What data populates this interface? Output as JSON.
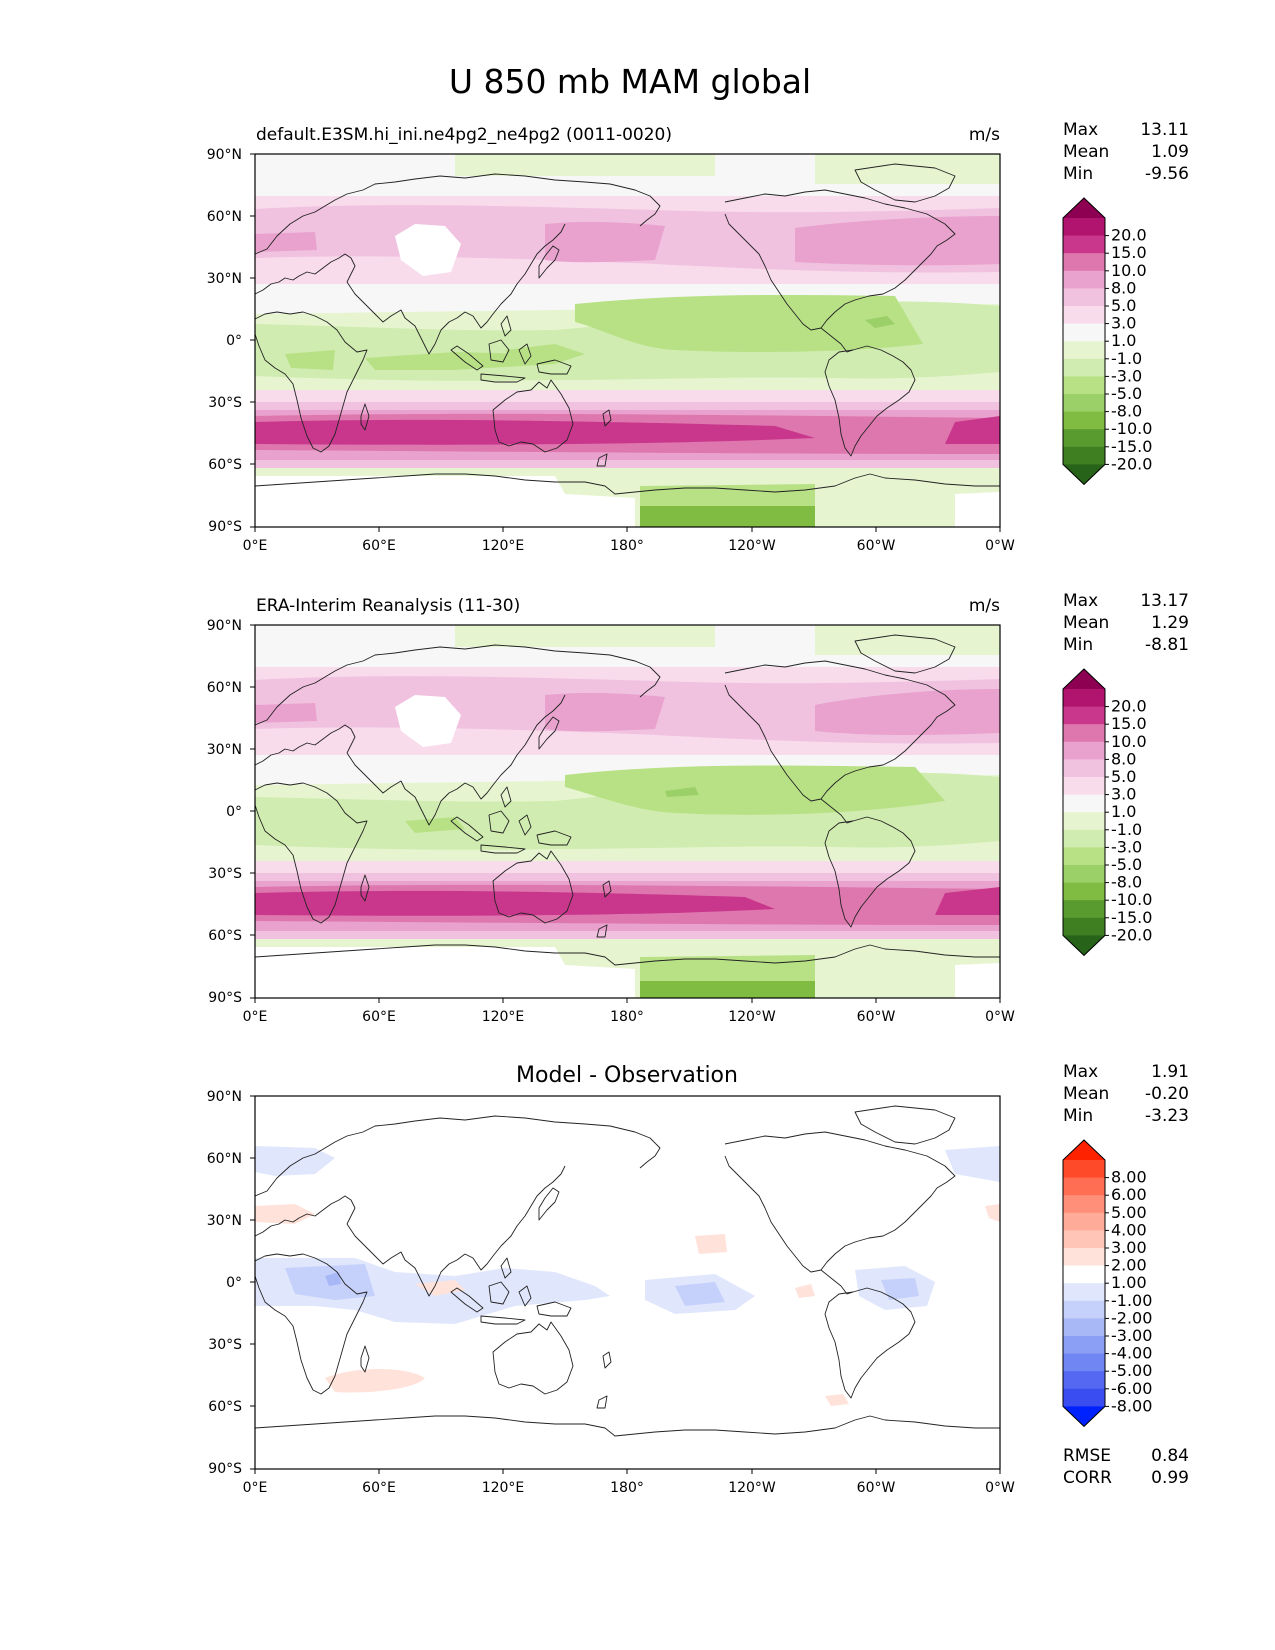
{
  "figure": {
    "title": "U 850 mb MAM global"
  },
  "axes": {
    "lat_ticks": [
      "90°N",
      "60°N",
      "30°N",
      "0°",
      "30°S",
      "60°S",
      "90°S"
    ],
    "lon_ticks": [
      "0°E",
      "60°E",
      "120°E",
      "180°",
      "120°W",
      "60°W",
      "0°W"
    ]
  },
  "panels": [
    {
      "id": "model",
      "title": "default.E3SM.hi_ini.ne4pg2_ne4pg2 (0011-0020)",
      "units": "m/s",
      "stats": {
        "max_label": "Max",
        "max": "13.11",
        "mean_label": "Mean",
        "mean": "1.09",
        "min_label": "Min",
        "min": "-9.56"
      },
      "levels": [
        "20.0",
        "15.0",
        "10.0",
        "8.0",
        "5.0",
        "3.0",
        "1.0",
        "-1.0",
        "-3.0",
        "-5.0",
        "-8.0",
        "-10.0",
        "-15.0",
        "-20.0"
      ],
      "colors": [
        "#8e0152",
        "#b0146e",
        "#c9378d",
        "#de77ae",
        "#e8a2cd",
        "#f1c2e0",
        "#f8dcec",
        "#f7f7f7",
        "#e6f5d0",
        "#d0ecb0",
        "#b8e186",
        "#9bcf68",
        "#7fbc41",
        "#5a9b2f",
        "#3f7f22",
        "#276419"
      ]
    },
    {
      "id": "obs",
      "title": "ERA-Interim Reanalysis (11-30)",
      "units": "m/s",
      "stats": {
        "max_label": "Max",
        "max": "13.17",
        "mean_label": "Mean",
        "mean": "1.29",
        "min_label": "Min",
        "min": "-8.81"
      },
      "levels": [
        "20.0",
        "15.0",
        "10.0",
        "8.0",
        "5.0",
        "3.0",
        "1.0",
        "-1.0",
        "-3.0",
        "-5.0",
        "-8.0",
        "-10.0",
        "-15.0",
        "-20.0"
      ],
      "colors": [
        "#8e0152",
        "#b0146e",
        "#c9378d",
        "#de77ae",
        "#e8a2cd",
        "#f1c2e0",
        "#f8dcec",
        "#f7f7f7",
        "#e6f5d0",
        "#d0ecb0",
        "#b8e186",
        "#9bcf68",
        "#7fbc41",
        "#5a9b2f",
        "#3f7f22",
        "#276419"
      ]
    },
    {
      "id": "diff",
      "title": "Model - Observation",
      "units": "",
      "stats": {
        "max_label": "Max",
        "max": "1.91",
        "mean_label": "Mean",
        "mean": "-0.20",
        "min_label": "Min",
        "min": "-3.23"
      },
      "levels": [
        "8.00",
        "6.00",
        "5.00",
        "4.00",
        "3.00",
        "2.00",
        "1.00",
        "-1.00",
        "-2.00",
        "-3.00",
        "-4.00",
        "-5.00",
        "-6.00",
        "-8.00"
      ],
      "colors": [
        "#ff2200",
        "#ff4a2a",
        "#ff6e52",
        "#ff8f78",
        "#ffab99",
        "#ffc6b8",
        "#ffe2da",
        "#ffffff",
        "#e0e6fc",
        "#c5d1fa",
        "#a8b8f7",
        "#8b9ff5",
        "#6f86f3",
        "#5468f2",
        "#3a4df1",
        "#0022ff"
      ],
      "metrics": {
        "rmse_label": "RMSE",
        "rmse": "0.84",
        "corr_label": "CORR",
        "corr": "0.99"
      }
    }
  ]
}
